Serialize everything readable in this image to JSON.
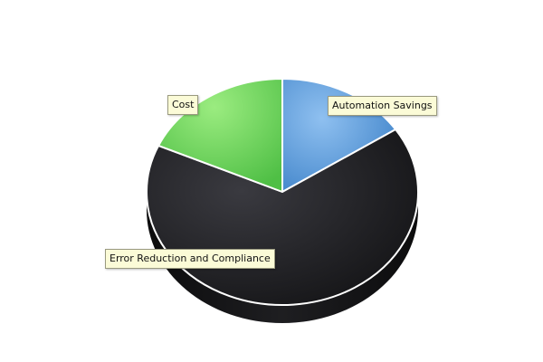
{
  "chart_data": {
    "type": "pie",
    "style": "3d",
    "slices": [
      {
        "label": "Automation Savings",
        "value": 15.7,
        "color": "#6aa7e2"
      },
      {
        "label": "Error Reduction and Compliance",
        "value": 66.0,
        "color": "#1b1b1e"
      },
      {
        "label": "Cost",
        "value": 18.3,
        "color": "#7ad86a"
      }
    ],
    "title": "",
    "legend": "none",
    "data_labels": "callouts"
  }
}
